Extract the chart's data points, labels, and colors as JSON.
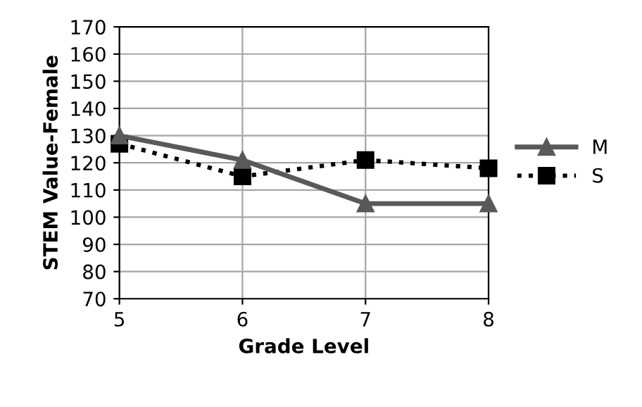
{
  "chart_data": {
    "type": "line",
    "xlabel": "Grade Level",
    "ylabel": "STEM Value-Female",
    "x": [
      5,
      6,
      7,
      8
    ],
    "xlim": [
      5,
      8
    ],
    "xticks": [
      5,
      6,
      7,
      8
    ],
    "ylim": [
      70,
      170
    ],
    "yticks": [
      70,
      80,
      90,
      100,
      110,
      120,
      130,
      140,
      150,
      160,
      170
    ],
    "grid": true,
    "legend": "right",
    "series": [
      {
        "name": "M",
        "color": "#595959",
        "values": [
          130,
          121,
          105,
          105
        ],
        "marker": "triangle",
        "line_style": "solid"
      },
      {
        "name": "S",
        "color": "#000000",
        "values": [
          127,
          115,
          121,
          118
        ],
        "marker": "square",
        "line_style": "dotted"
      }
    ]
  }
}
